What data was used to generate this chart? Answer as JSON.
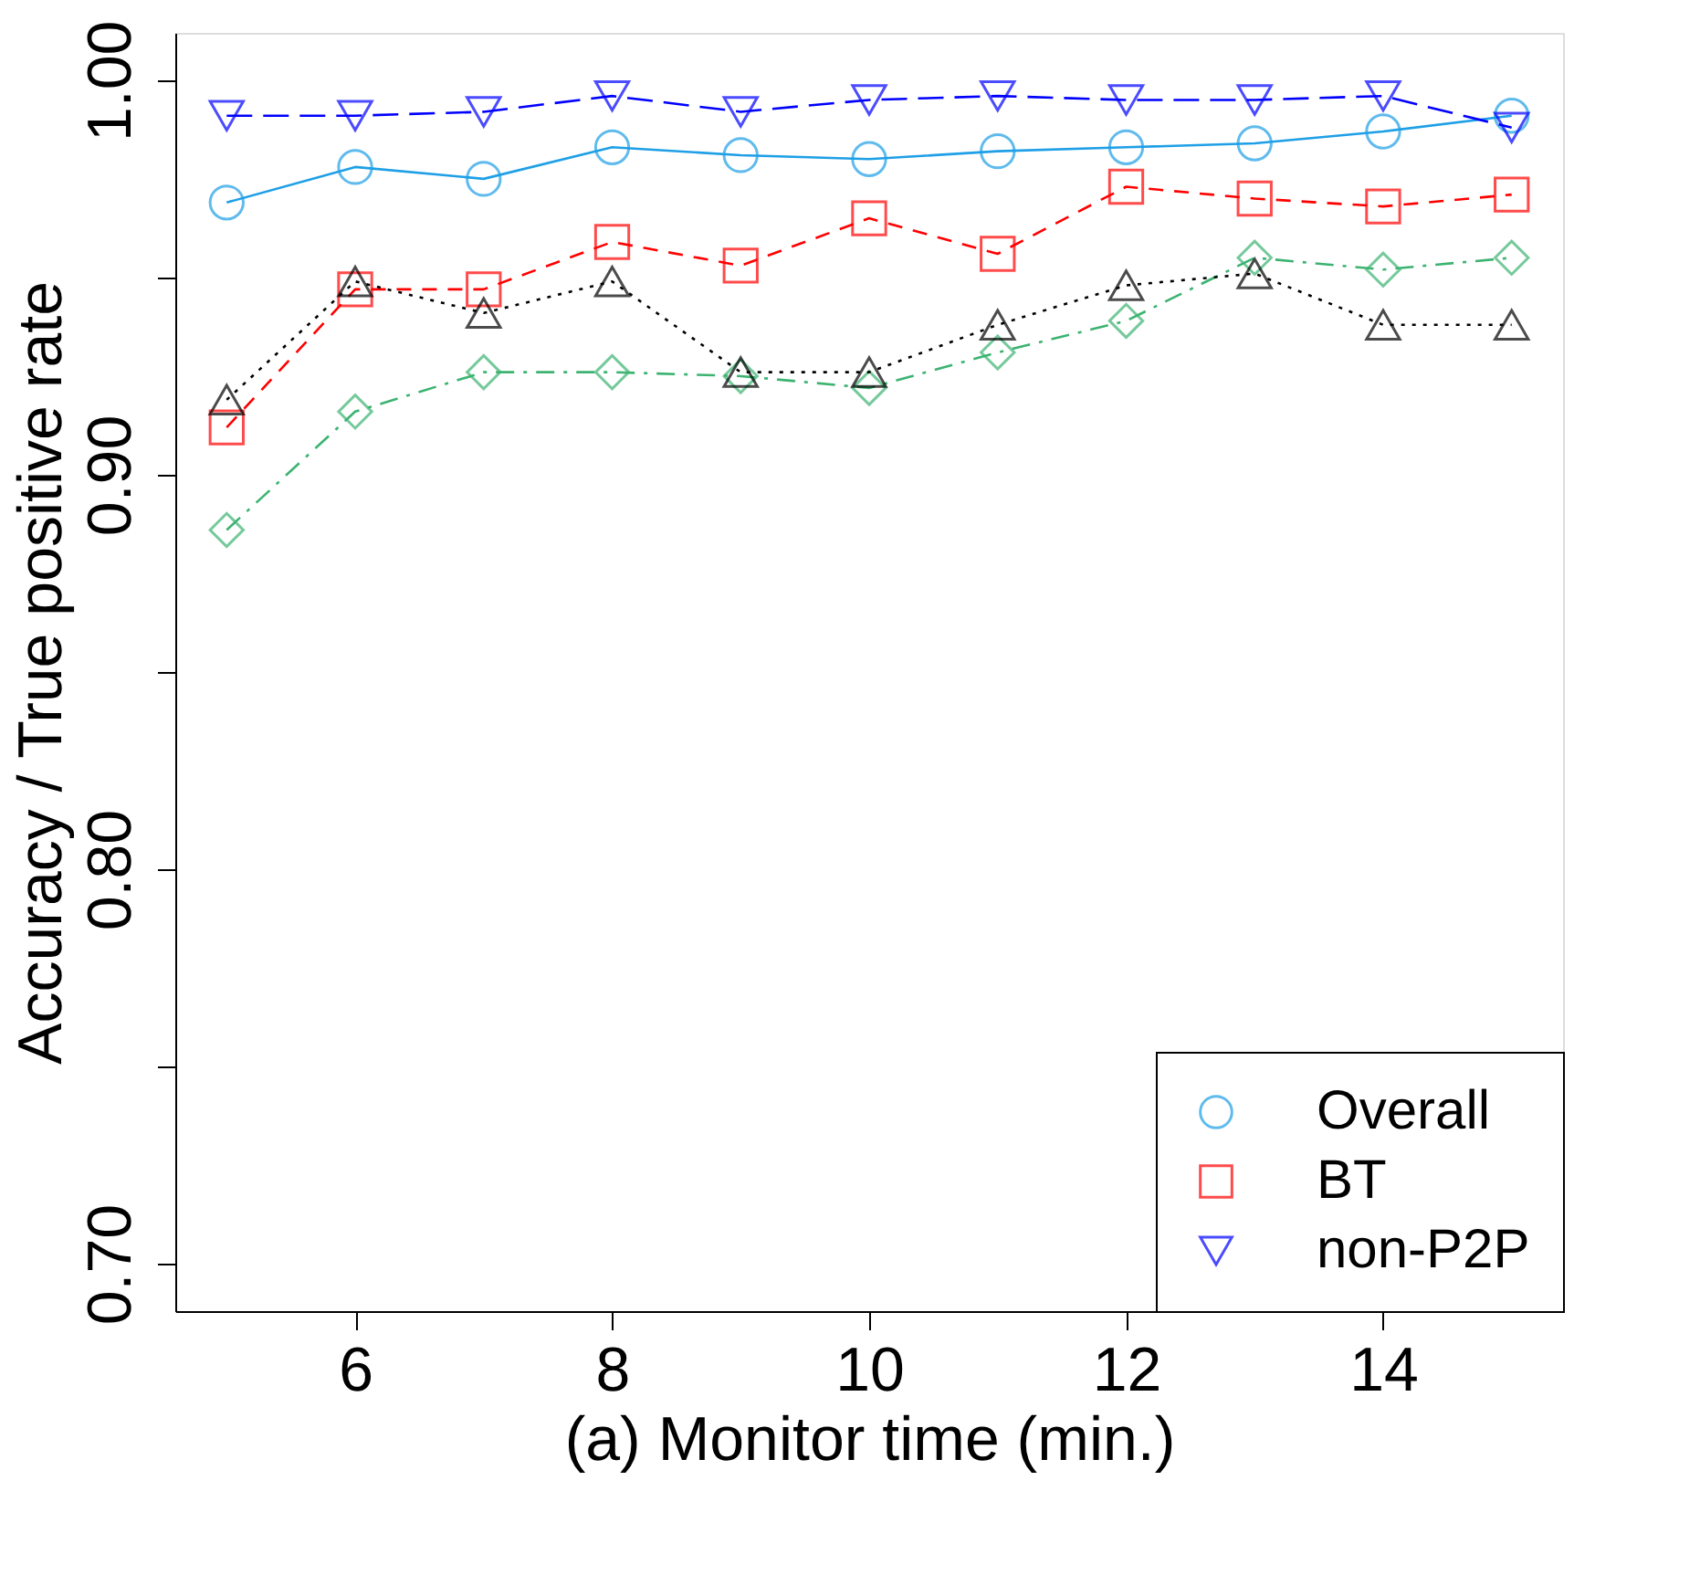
{
  "chart_data": {
    "type": "line",
    "xlabel": "(a) Monitor time (min.)",
    "ylabel": "Accuracy / True positive rate",
    "x": [
      5,
      6,
      7,
      8,
      9,
      10,
      11,
      12,
      13,
      14,
      15
    ],
    "xlim": [
      4.6,
      15.4
    ],
    "xticks": [
      6,
      8,
      10,
      12,
      14
    ],
    "ylim": [
      0.688,
      1.012
    ],
    "yticks": [
      {
        "value": 0.7,
        "label": "0.70"
      },
      {
        "value": 0.75,
        "label": null
      },
      {
        "value": 0.8,
        "label": "0.80"
      },
      {
        "value": 0.85,
        "label": null
      },
      {
        "value": 0.9,
        "label": "0.90"
      },
      {
        "value": 0.95,
        "label": null
      },
      {
        "value": 1.0,
        "label": "1.00"
      }
    ],
    "grid": false,
    "legend": "bottom right",
    "series": [
      {
        "name": "Overall",
        "color": "#1e9fe6",
        "marker": "circle",
        "line_style": "solid",
        "values": [
          0.969,
          0.978,
          0.975,
          0.983,
          0.981,
          0.98,
          0.982,
          0.983,
          0.984,
          0.987,
          0.991
        ]
      },
      {
        "name": "BT",
        "color": "#ff0000",
        "marker": "square",
        "line_style": "dashed",
        "values": [
          0.912,
          0.947,
          0.947,
          0.959,
          0.953,
          0.965,
          0.956,
          0.973,
          0.97,
          0.968,
          0.971
        ]
      },
      {
        "color": "#3cb371",
        "marker": "diamond",
        "line_style": "dashdot",
        "values": [
          0.886,
          0.916,
          0.926,
          0.926,
          0.925,
          0.922,
          0.931,
          0.939,
          0.955,
          0.952,
          0.955
        ]
      },
      {
        "color": "#000000",
        "marker": "triangle",
        "line_style": "dotted",
        "values": [
          0.919,
          0.949,
          0.941,
          0.949,
          0.926,
          0.926,
          0.938,
          0.948,
          0.951,
          0.938,
          0.938
        ]
      },
      {
        "name": "non-P2P",
        "color": "#0000ff",
        "marker": "triangle-down",
        "line_style": "longdash",
        "values": [
          0.991,
          0.991,
          0.992,
          0.996,
          0.992,
          0.995,
          0.996,
          0.995,
          0.995,
          0.996,
          0.988
        ]
      }
    ]
  }
}
